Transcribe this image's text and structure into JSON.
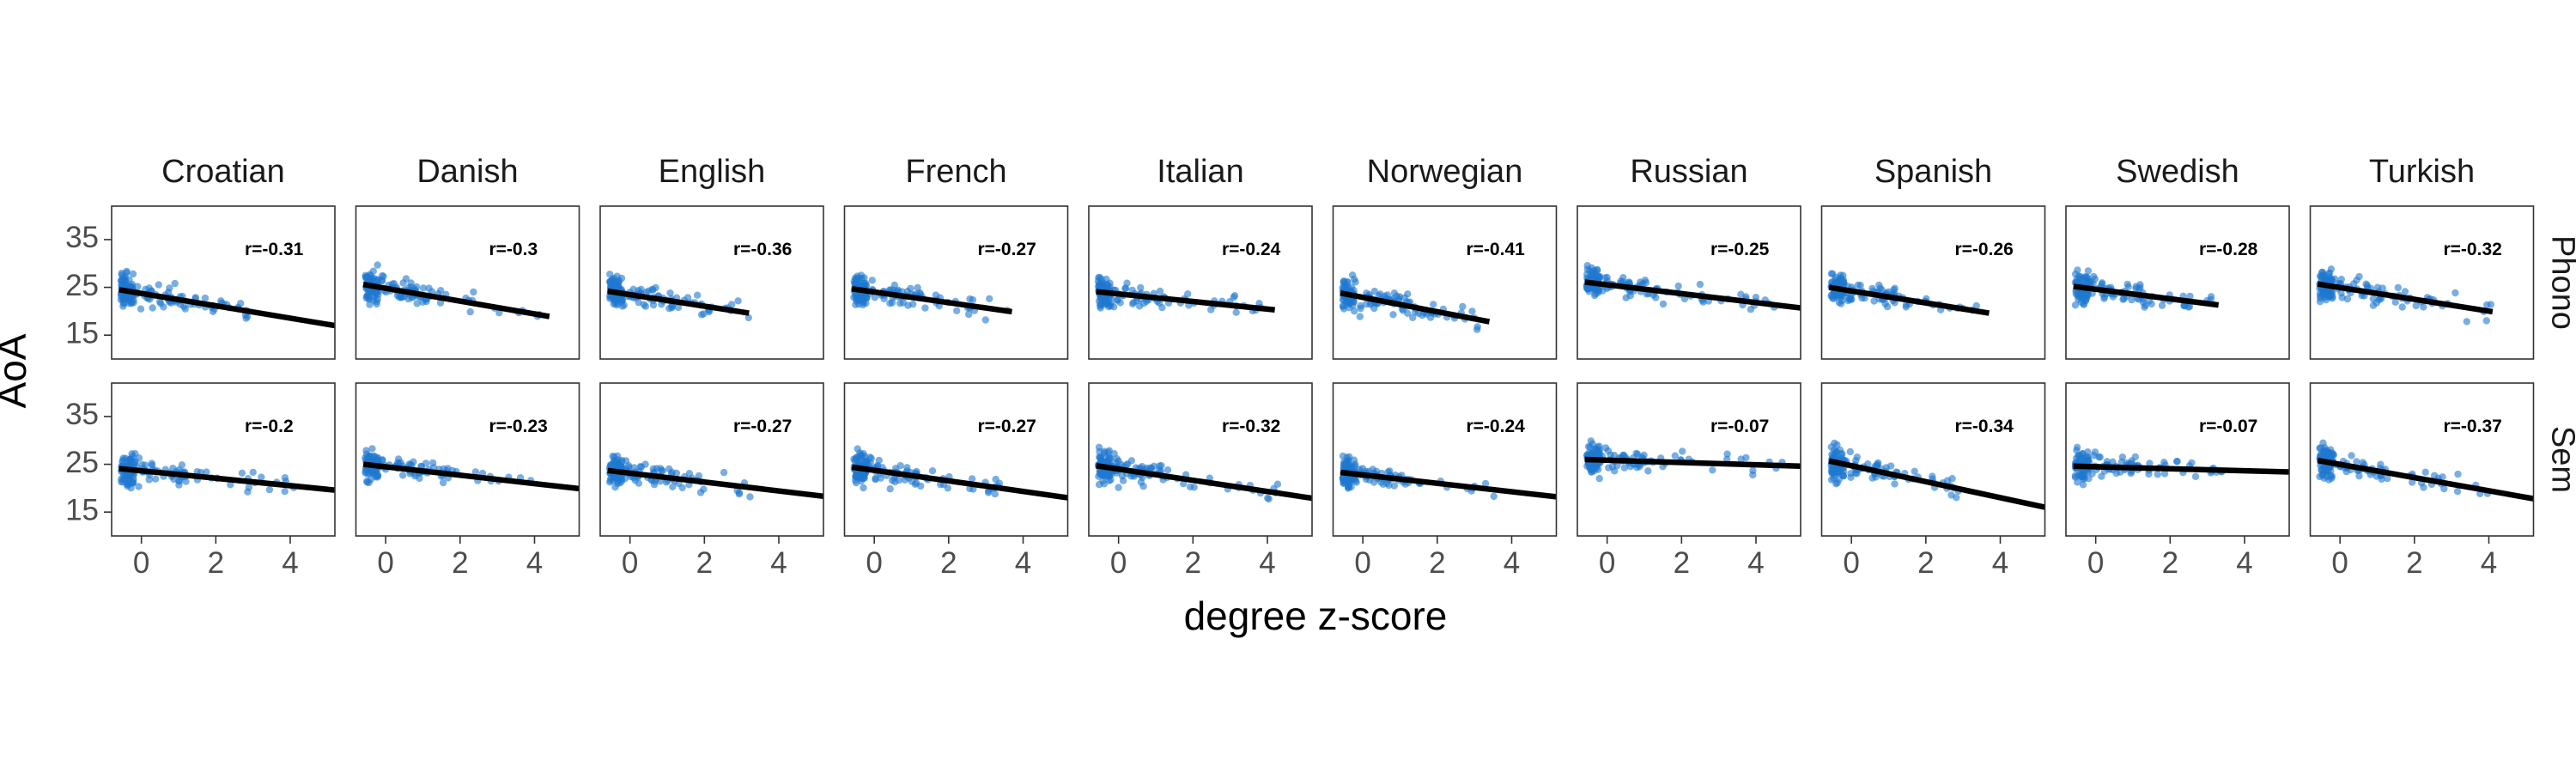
{
  "chart_data": {
    "type": "scatter",
    "xlabel": "degree z-score",
    "ylabel": "AoA",
    "xlim": [
      -0.8,
      5.2
    ],
    "ylim": [
      10,
      42
    ],
    "x_ticks": [
      0,
      2,
      4
    ],
    "x_tick_labels": [
      "0",
      "2",
      "4"
    ],
    "y_ticks": [
      15,
      25,
      35
    ],
    "y_tick_labels": [
      "15",
      "25",
      "35"
    ],
    "grid": false,
    "columns": [
      "Croatian",
      "Danish",
      "English",
      "French",
      "Italian",
      "Norwegian",
      "Russian",
      "Spanish",
      "Swedish",
      "Turkish"
    ],
    "rows": [
      "Phono",
      "Sem"
    ],
    "panels": [
      {
        "language": "Croatian",
        "row": "Phono",
        "r_label": "r=-0.31",
        "r": -0.31,
        "fit": {
          "x0": -0.6,
          "x1": 5.2,
          "y0": 24.5,
          "y1": 17.0
        },
        "x_max": 3.0
      },
      {
        "language": "Danish",
        "row": "Phono",
        "r_label": "r=-0.3",
        "r": -0.3,
        "fit": {
          "x0": -0.6,
          "x1": 4.4,
          "y0": 25.6,
          "y1": 18.9
        },
        "x_max": 4.4
      },
      {
        "language": "English",
        "row": "Phono",
        "r_label": "r=-0.36",
        "r": -0.36,
        "fit": {
          "x0": -0.6,
          "x1": 3.2,
          "y0": 24.2,
          "y1": 19.6
        },
        "x_max": 3.2
      },
      {
        "language": "French",
        "row": "Phono",
        "r_label": "r=-0.27",
        "r": -0.27,
        "fit": {
          "x0": -0.6,
          "x1": 3.7,
          "y0": 24.7,
          "y1": 19.9
        },
        "x_max": 3.7
      },
      {
        "language": "Italian",
        "row": "Phono",
        "r_label": "r=-0.24",
        "r": -0.24,
        "fit": {
          "x0": -0.6,
          "x1": 4.2,
          "y0": 24.1,
          "y1": 20.3
        },
        "x_max": 4.2
      },
      {
        "language": "Norwegian",
        "row": "Phono",
        "r_label": "r=-0.41",
        "r": -0.41,
        "fit": {
          "x0": -0.6,
          "x1": 3.4,
          "y0": 23.8,
          "y1": 17.8
        },
        "x_max": 3.4
      },
      {
        "language": "Russian",
        "row": "Phono",
        "r_label": "r=-0.25",
        "r": -0.25,
        "fit": {
          "x0": -0.6,
          "x1": 5.2,
          "y0": 26.1,
          "y1": 20.7
        },
        "x_max": 4.6
      },
      {
        "language": "Spanish",
        "row": "Phono",
        "r_label": "r=-0.26",
        "r": -0.26,
        "fit": {
          "x0": -0.6,
          "x1": 3.7,
          "y0": 25.0,
          "y1": 19.6
        },
        "x_max": 3.6
      },
      {
        "language": "Swedish",
        "row": "Phono",
        "r_label": "r=-0.28",
        "r": -0.28,
        "fit": {
          "x0": -0.6,
          "x1": 3.3,
          "y0": 25.2,
          "y1": 21.3
        },
        "x_max": 3.3
      },
      {
        "language": "Turkish",
        "row": "Phono",
        "r_label": "r=-0.32",
        "r": -0.32,
        "fit": {
          "x0": -0.6,
          "x1": 4.1,
          "y0": 25.7,
          "y1": 19.9
        },
        "x_max": 4.1
      },
      {
        "language": "Croatian",
        "row": "Sem",
        "r_label": "r=-0.2",
        "r": -0.2,
        "fit": {
          "x0": -0.6,
          "x1": 5.2,
          "y0": 24.1,
          "y1": 19.6
        },
        "x_max": 4.1
      },
      {
        "language": "Danish",
        "row": "Sem",
        "r_label": "r=-0.23",
        "r": -0.23,
        "fit": {
          "x0": -0.6,
          "x1": 5.2,
          "y0": 25.0,
          "y1": 19.9
        },
        "x_max": 4.0
      },
      {
        "language": "English",
        "row": "Sem",
        "r_label": "r=-0.27",
        "r": -0.27,
        "fit": {
          "x0": -0.6,
          "x1": 5.2,
          "y0": 23.7,
          "y1": 18.3
        },
        "x_max": 3.3
      },
      {
        "language": "French",
        "row": "Sem",
        "r_label": "r=-0.27",
        "r": -0.27,
        "fit": {
          "x0": -0.6,
          "x1": 5.2,
          "y0": 24.4,
          "y1": 18.0
        },
        "x_max": 3.4
      },
      {
        "language": "Italian",
        "row": "Sem",
        "r_label": "r=-0.32",
        "r": -0.32,
        "fit": {
          "x0": -0.6,
          "x1": 5.2,
          "y0": 24.7,
          "y1": 17.9
        },
        "x_max": 4.3
      },
      {
        "language": "Norwegian",
        "row": "Sem",
        "r_label": "r=-0.24",
        "r": -0.24,
        "fit": {
          "x0": -0.6,
          "x1": 5.2,
          "y0": 23.3,
          "y1": 18.2
        },
        "x_max": 3.6
      },
      {
        "language": "Russian",
        "row": "Sem",
        "r_label": "r=-0.07",
        "r": -0.07,
        "fit": {
          "x0": -0.6,
          "x1": 5.2,
          "y0": 26.0,
          "y1": 24.6
        },
        "x_max": 4.8
      },
      {
        "language": "Spanish",
        "row": "Sem",
        "r_label": "r=-0.34",
        "r": -0.34,
        "fit": {
          "x0": -0.6,
          "x1": 5.2,
          "y0": 25.7,
          "y1": 16.0
        },
        "x_max": 3.3
      },
      {
        "language": "Swedish",
        "row": "Sem",
        "r_label": "r=-0.07",
        "r": -0.07,
        "fit": {
          "x0": -0.6,
          "x1": 5.2,
          "y0": 24.6,
          "y1": 23.4
        },
        "x_max": 3.4
      },
      {
        "language": "Turkish",
        "row": "Sem",
        "r_label": "r=-0.37",
        "r": -0.37,
        "fit": {
          "x0": -0.6,
          "x1": 5.2,
          "y0": 25.8,
          "y1": 17.8
        },
        "x_max": 4.1
      }
    ],
    "colors": {
      "points": "#1f78d1",
      "fit_line": "#000000",
      "panel_border": "#333333"
    }
  }
}
